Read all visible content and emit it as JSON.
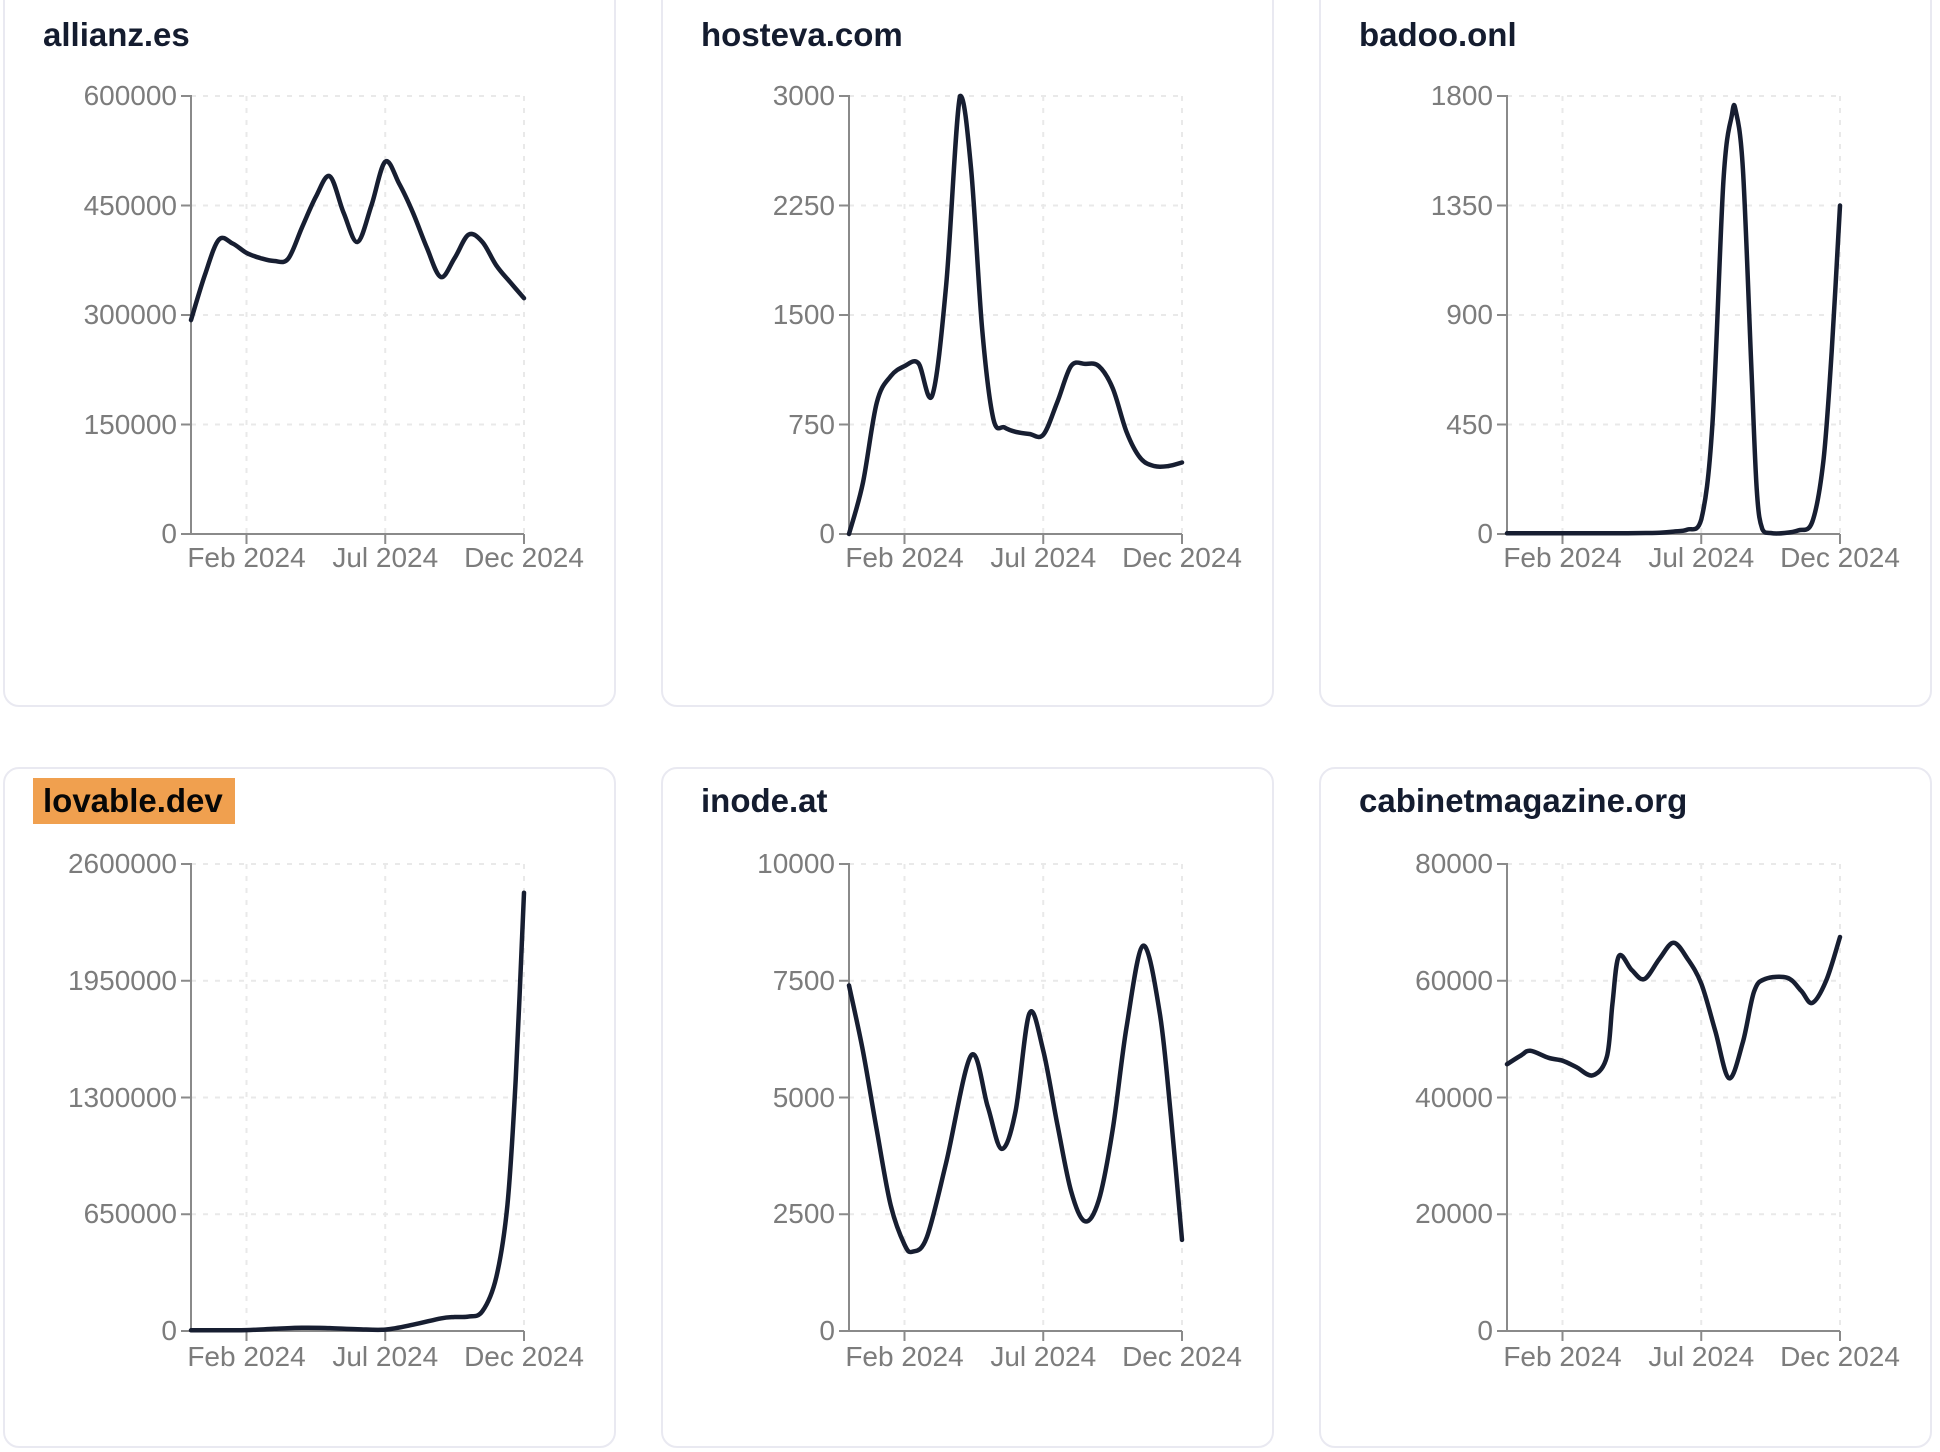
{
  "style": {
    "background": "#ffffff",
    "card_border": "#e9e9f1",
    "line_color": "#171e31",
    "axis_color": "#8a8a8a",
    "grid_color": "#e9e9e9",
    "tick_label_color": "#7c7c7c",
    "title_color": "#141c2f",
    "highlight_color": "#f0a04f"
  },
  "x_axis": {
    "tick_labels": [
      "Feb 2024",
      "Jul 2024",
      "Dec 2024"
    ],
    "tick_months": [
      2,
      7,
      12
    ],
    "domain_months": [
      0,
      12
    ]
  },
  "chart_data": [
    {
      "type": "line",
      "title": "allianz.es",
      "highlighted": false,
      "ylim": [
        0,
        600000
      ],
      "yticks": [
        0,
        150000,
        300000,
        450000,
        600000
      ],
      "xtick_labels": [
        "Feb 2024",
        "Jul 2024",
        "Dec 2024"
      ],
      "xtick_months": [
        2,
        7,
        12
      ],
      "x_unit": "months since Dec 2023",
      "grid": "dashed",
      "legend": "none",
      "x": [
        0,
        0.5,
        1,
        1.5,
        2,
        2.5,
        3,
        3.5,
        4,
        4.5,
        5,
        5.5,
        6,
        6.5,
        7,
        7.5,
        8,
        8.5,
        9,
        9.5,
        10,
        10.5,
        11,
        11.5,
        12
      ],
      "values": [
        293000,
        355000,
        403000,
        398000,
        385000,
        378000,
        374000,
        377000,
        420000,
        462000,
        490000,
        440000,
        400000,
        450000,
        510000,
        480000,
        440000,
        392000,
        352000,
        378000,
        410000,
        400000,
        368000,
        345000,
        323000
      ]
    },
    {
      "type": "line",
      "title": "hosteva.com",
      "highlighted": false,
      "ylim": [
        0,
        3000
      ],
      "yticks": [
        0,
        750,
        1500,
        2250,
        3000
      ],
      "xtick_labels": [
        "Feb 2024",
        "Jul 2024",
        "Dec 2024"
      ],
      "xtick_months": [
        2,
        7,
        12
      ],
      "x_unit": "months since Dec 2023",
      "grid": "dashed",
      "legend": "none",
      "x": [
        0,
        0.5,
        1,
        1.5,
        2,
        2.5,
        3,
        3.5,
        4,
        4.4,
        4.8,
        5.2,
        5.6,
        6,
        6.5,
        7,
        7.5,
        8,
        8.5,
        9,
        9.5,
        10,
        10.5,
        11,
        11.5,
        12
      ],
      "values": [
        0,
        350,
        900,
        1080,
        1150,
        1170,
        950,
        1700,
        3000,
        2500,
        1400,
        790,
        730,
        700,
        685,
        680,
        900,
        1150,
        1165,
        1150,
        1000,
        700,
        520,
        465,
        465,
        490
      ]
    },
    {
      "type": "line",
      "title": "badoo.onl",
      "highlighted": false,
      "ylim": [
        0,
        1800
      ],
      "yticks": [
        0,
        450,
        900,
        1350,
        1800
      ],
      "xtick_labels": [
        "Feb 2024",
        "Jul 2024",
        "Dec 2024"
      ],
      "xtick_months": [
        2,
        7,
        12
      ],
      "x_unit": "months since Dec 2023",
      "grid": "dashed",
      "legend": "none",
      "x": [
        0,
        1,
        2,
        3,
        4,
        5,
        5.5,
        6,
        6.5,
        7,
        7.4,
        7.8,
        8.1,
        8.24,
        8.5,
        8.8,
        9,
        9.2,
        9.5,
        10,
        10.5,
        11,
        11.4,
        11.7,
        12
      ],
      "values": [
        3,
        3,
        3,
        3,
        3,
        4,
        5,
        10,
        18,
        60,
        450,
        1450,
        1720,
        1740,
        1500,
        700,
        180,
        20,
        4,
        4,
        15,
        50,
        300,
        750,
        1350
      ]
    },
    {
      "type": "line",
      "title": "lovable.dev",
      "highlighted": true,
      "ylim": [
        0,
        2600000
      ],
      "yticks": [
        0,
        650000,
        1300000,
        1950000,
        2600000
      ],
      "xtick_labels": [
        "Feb 2024",
        "Jul 2024",
        "Dec 2024"
      ],
      "xtick_months": [
        2,
        7,
        12
      ],
      "x_unit": "months since Dec 2023",
      "grid": "dashed",
      "legend": "none",
      "x": [
        0,
        1,
        2,
        3,
        4,
        5,
        6,
        7,
        8,
        9,
        9.5,
        10,
        10.5,
        11,
        11.4,
        11.7,
        12
      ],
      "values": [
        4000,
        4000,
        5000,
        12000,
        18000,
        16000,
        10000,
        8000,
        35000,
        70000,
        78000,
        80000,
        110000,
        300000,
        700000,
        1400000,
        2440000
      ]
    },
    {
      "type": "line",
      "title": "inode.at",
      "highlighted": false,
      "ylim": [
        0,
        10000
      ],
      "yticks": [
        0,
        2500,
        5000,
        7500,
        10000
      ],
      "xtick_labels": [
        "Feb 2024",
        "Jul 2024",
        "Dec 2024"
      ],
      "xtick_months": [
        2,
        7,
        12
      ],
      "x_unit": "months since Dec 2023",
      "grid": "dashed",
      "legend": "none",
      "x": [
        0,
        0.5,
        1,
        1.5,
        2,
        2.3,
        2.8,
        3.5,
        4.4,
        5,
        5.5,
        6,
        6.5,
        7,
        7.5,
        8,
        8.5,
        9,
        9.5,
        10,
        10.6,
        11.2,
        11.6,
        12
      ],
      "values": [
        7400,
        6000,
        4300,
        2700,
        1850,
        1700,
        2000,
        3600,
        5900,
        4800,
        3900,
        4700,
        6800,
        6000,
        4450,
        3000,
        2350,
        2800,
        4300,
        6500,
        8250,
        6800,
        4600,
        1950
      ]
    },
    {
      "type": "line",
      "title": "cabinetmagazine.org",
      "highlighted": false,
      "ylim": [
        0,
        80000
      ],
      "yticks": [
        0,
        20000,
        40000,
        60000,
        80000
      ],
      "xtick_labels": [
        "Feb 2024",
        "Jul 2024",
        "Dec 2024"
      ],
      "xtick_months": [
        2,
        7,
        12
      ],
      "x_unit": "months since Dec 2023",
      "grid": "dashed",
      "legend": "none",
      "x": [
        0,
        0.5,
        0.84,
        1.5,
        2,
        2.5,
        3.1,
        3.6,
        3.8,
        4.03,
        4.5,
        4.95,
        5.5,
        6,
        6.5,
        7,
        7.5,
        8,
        8.5,
        8.9,
        9.3,
        10.1,
        10.6,
        11,
        11.5,
        12
      ],
      "values": [
        45700,
        47200,
        48000,
        46800,
        46300,
        45200,
        43800,
        47000,
        56000,
        64200,
        61800,
        60300,
        63800,
        66500,
        63800,
        59500,
        51500,
        43300,
        49500,
        58100,
        60300,
        60500,
        58300,
        56200,
        60000,
        67500
      ]
    }
  ]
}
